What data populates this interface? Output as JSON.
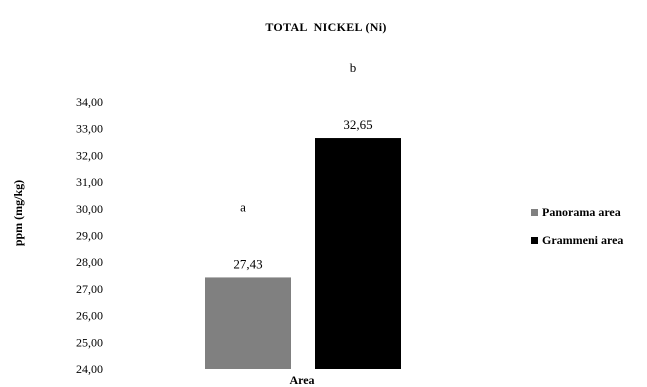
{
  "chart_data": {
    "type": "bar",
    "title": "TOTAL  NICKEL (Ni)",
    "xlabel": "Area",
    "ylabel": "ppm (mg/kg)",
    "ylim": [
      24,
      34
    ],
    "yticks": [
      "24,00",
      "25,00",
      "26,00",
      "27,00",
      "28,00",
      "29,00",
      "30,00",
      "31,00",
      "32,00",
      "33,00",
      "34,00"
    ],
    "grid": false,
    "legend_position": "right",
    "series": [
      {
        "name": "Panorama area",
        "value": 27.43,
        "label": "27,43",
        "significance": "a",
        "color": "#808080"
      },
      {
        "name": "Grammeni area",
        "value": 32.65,
        "label": "32,65",
        "significance": "b",
        "color": "#000000"
      }
    ]
  }
}
